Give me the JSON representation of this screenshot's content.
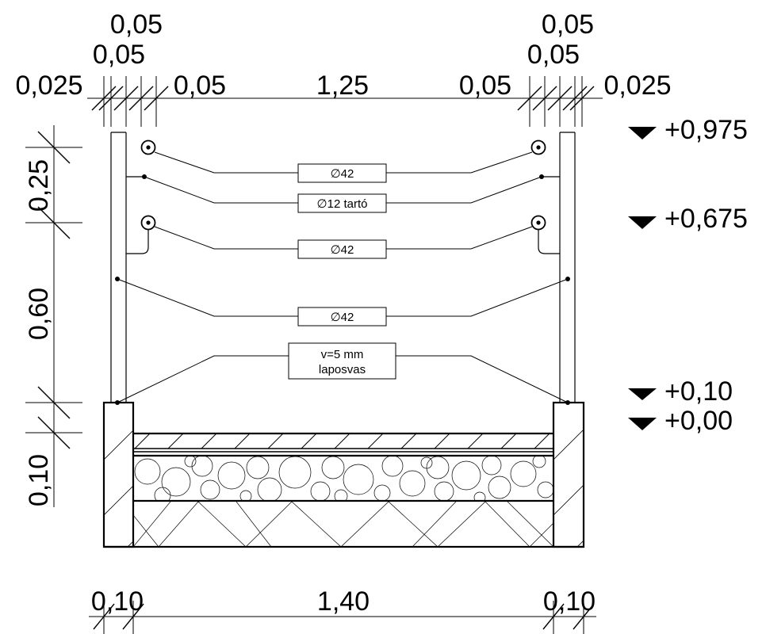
{
  "top_dims": {
    "left_top": "0,05",
    "left_mid": "0,05",
    "left_outer": "0,025",
    "left_inner": "0,05",
    "center": "1,25",
    "right_inner": "0,05",
    "right_top": "0,05",
    "right_mid": "0,05",
    "right_outer": "0,025"
  },
  "side_dims": {
    "upper": "0,25",
    "middle": "0,60",
    "lower": "0,10"
  },
  "bottom_dims": {
    "left": "0,10",
    "center": "1,40",
    "right": "0,10"
  },
  "levels": [
    {
      "text": "+0,975"
    },
    {
      "text": "+0,675"
    },
    {
      "text": "+0,10"
    },
    {
      "text": "+0,00"
    }
  ],
  "labels": {
    "pipe_top": "∅42",
    "holder": "∅12 tartó",
    "pipe_mid": "∅42",
    "pipe_low": "∅42",
    "flat_line1": "v=5 mm",
    "flat_line2": "laposvas"
  },
  "colors": {
    "ink": "#000000",
    "background": "#ffffff"
  }
}
